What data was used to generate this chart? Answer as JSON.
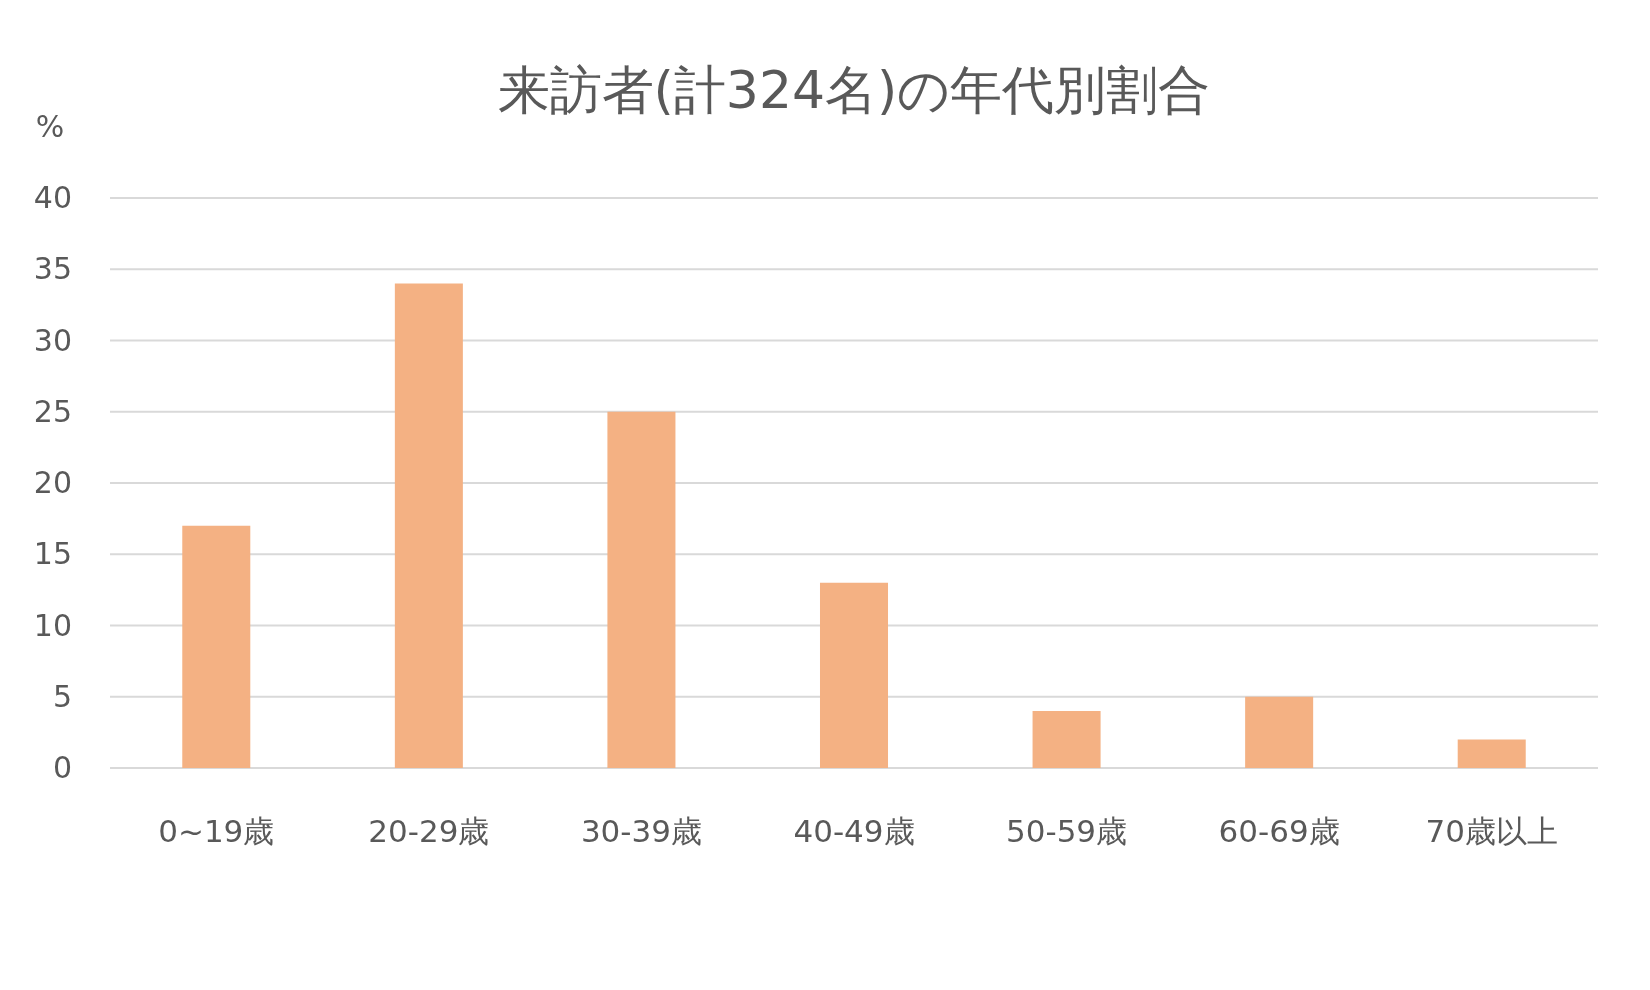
{
  "chart_data": {
    "type": "bar",
    "title": "来訪者(計324名)の年代別割合",
    "ylabel": "%",
    "categories": [
      "0~19歳",
      "20-29歳",
      "30-39歳",
      "40-49歳",
      "50-59歳",
      "60-69歳",
      "70歳以上"
    ],
    "values": [
      17,
      34,
      25,
      13,
      4,
      5,
      2
    ],
    "color": "#f4b183",
    "ylim": [
      0,
      40
    ],
    "yticks": [
      0,
      5,
      10,
      15,
      20,
      25,
      30,
      35,
      40
    ],
    "grid": "y"
  }
}
